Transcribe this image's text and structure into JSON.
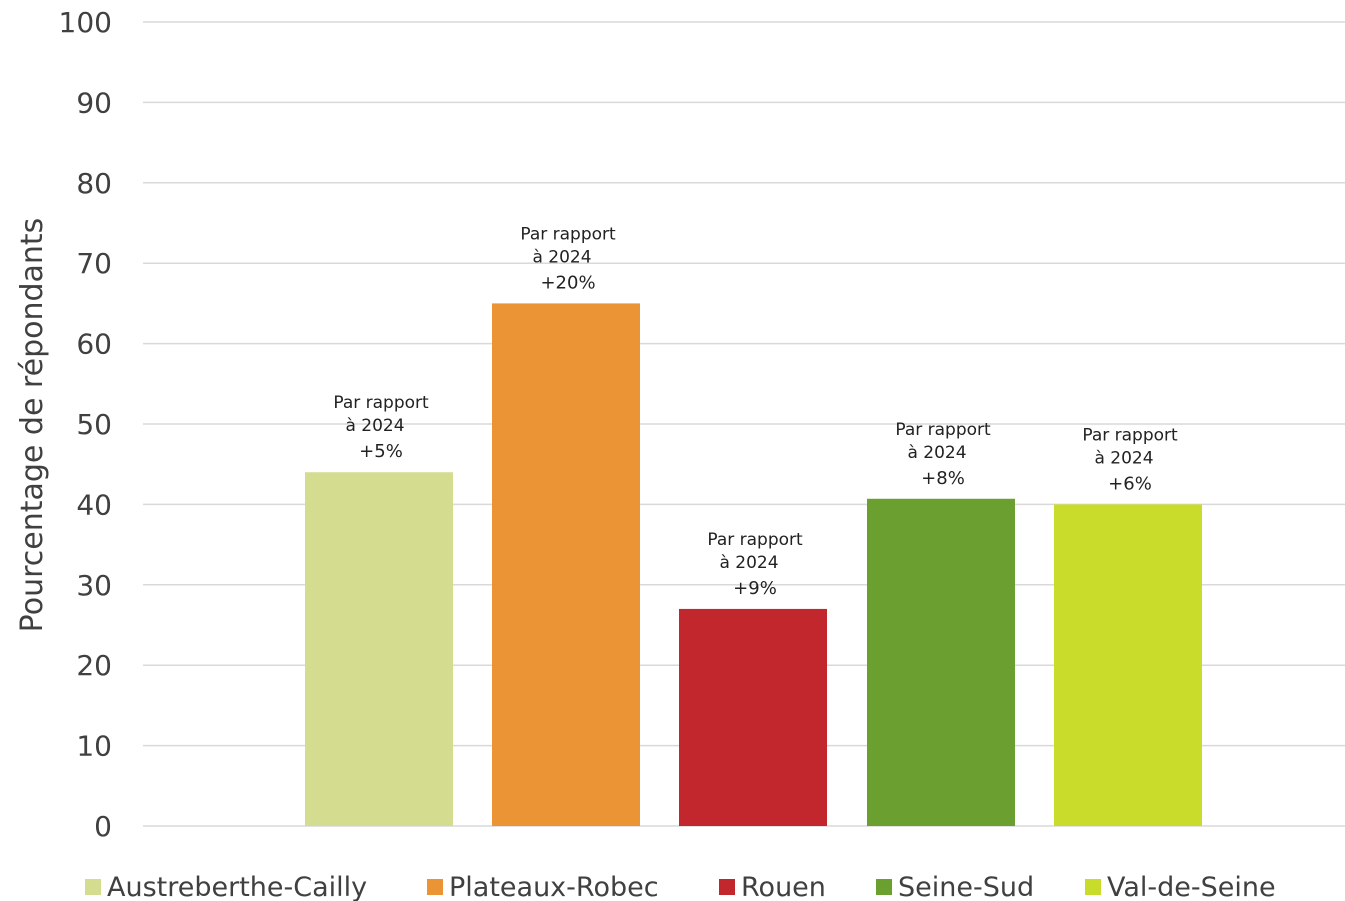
{
  "chart_data": {
    "type": "bar",
    "ylabel": "Pourcentage de répondants",
    "ylim": [
      0,
      100
    ],
    "yticks": [
      0,
      10,
      20,
      30,
      40,
      50,
      60,
      70,
      80,
      90,
      100
    ],
    "grid": true,
    "legend_position": "bottom",
    "series": [
      {
        "name": "Austreberthe-Cailly",
        "value": 44,
        "color": "#d3dc8f",
        "annotation": [
          "Par rapport",
          "à 2024"
        ],
        "change": "+5%"
      },
      {
        "name": "Plateaux-Robec",
        "value": 65,
        "color": "#eb9435",
        "annotation": [
          "Par rapport",
          "à 2024"
        ],
        "change": "+20%"
      },
      {
        "name": "Rouen",
        "value": 27,
        "color": "#c1272d",
        "annotation": [
          "Par rapport",
          "à 2024"
        ],
        "change": "+9%"
      },
      {
        "name": "Seine-Sud",
        "value": 40.7,
        "color": "#6b9f30",
        "annotation": [
          "Par rapport",
          "à 2024"
        ],
        "change": "+8%"
      },
      {
        "name": "Val-de-Seine",
        "value": 40,
        "color": "#c9dc2b",
        "annotation": [
          "Par rapport",
          "à 2024"
        ],
        "change": "+6%"
      }
    ]
  }
}
